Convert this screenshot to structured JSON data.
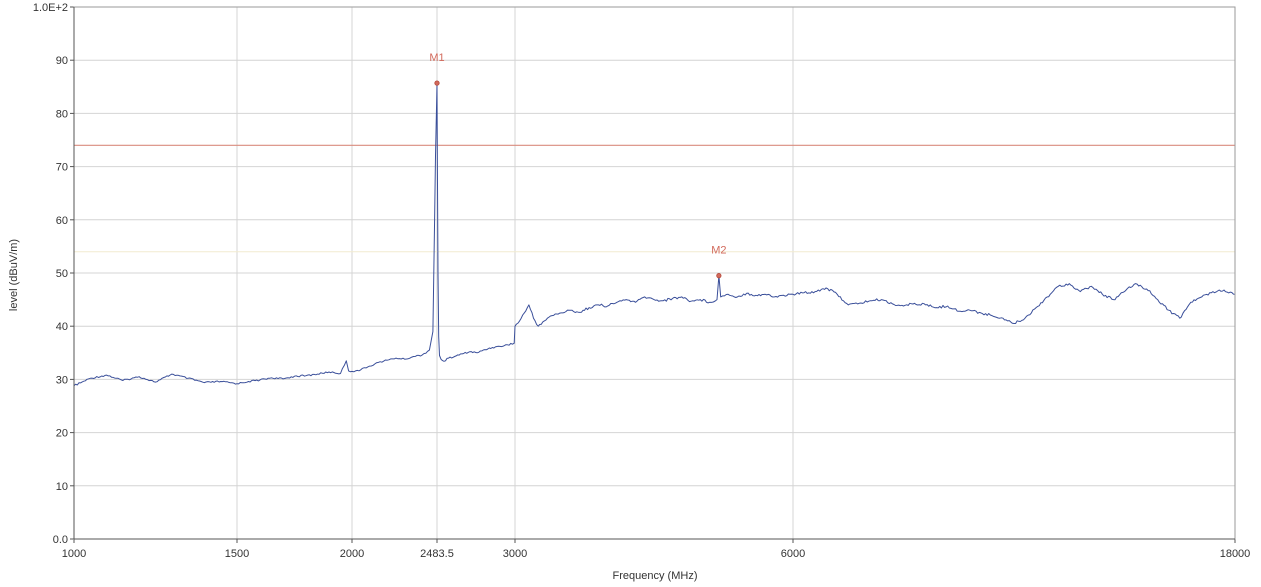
{
  "chart_data": {
    "type": "line",
    "title": "",
    "xlabel": "Frequency (MHz)",
    "ylabel": "level (dBuV/m)",
    "x_tick_labels": [
      {
        "value": 1000,
        "label": "1000"
      },
      {
        "value": 1500,
        "label": "1500"
      },
      {
        "value": 2000,
        "label": "2000"
      },
      {
        "value": 2483.5,
        "label": "2483.5"
      },
      {
        "value": 3000,
        "label": "3000"
      },
      {
        "value": 6000,
        "label": "6000"
      },
      {
        "value": 18000,
        "label": "18000"
      }
    ],
    "y_tick_labels": [
      {
        "value": 0,
        "label": "0.0"
      },
      {
        "value": 10,
        "label": "10"
      },
      {
        "value": 20,
        "label": "20"
      },
      {
        "value": 30,
        "label": "30"
      },
      {
        "value": 40,
        "label": "40"
      },
      {
        "value": 50,
        "label": "50"
      },
      {
        "value": 60,
        "label": "60"
      },
      {
        "value": 70,
        "label": "70"
      },
      {
        "value": 80,
        "label": "80"
      },
      {
        "value": 90,
        "label": "90"
      },
      {
        "value": 100,
        "label": "1.0E+2"
      }
    ],
    "ylim": [
      0,
      100
    ],
    "grid": true,
    "limit_line": {
      "y": 74,
      "color": "#d98c7f"
    },
    "faint_line": {
      "y": 54,
      "color": "#f2ecd0"
    },
    "markers": [
      {
        "label": "M1",
        "x": 2483.5,
        "y": 85.7
      },
      {
        "label": "M2",
        "x": 5200,
        "y": 49.5
      }
    ],
    "series": [
      {
        "color": "#3a4f9a",
        "x": [
          1000,
          1050,
          1100,
          1150,
          1200,
          1250,
          1300,
          1350,
          1400,
          1450,
          1500,
          1550,
          1600,
          1650,
          1700,
          1750,
          1800,
          1850,
          1900,
          1950,
          1975,
          1985,
          2000,
          2050,
          2100,
          2150,
          2200,
          2250,
          2300,
          2350,
          2400,
          2440,
          2460,
          2470,
          2475,
          2480,
          2483.5,
          2486,
          2490,
          2495,
          2500,
          2510,
          2530,
          2560,
          2600,
          2650,
          2700,
          2750,
          2800,
          2850,
          2900,
          2950,
          2995,
          3000,
          3050,
          3100,
          3150,
          3200,
          3250,
          3300,
          3350,
          3400,
          3500,
          3600,
          3700,
          3800,
          3900,
          4000,
          4100,
          4200,
          4300,
          4400,
          4500,
          4600,
          4700,
          4800,
          4900,
          5000,
          5100,
          5180,
          5200,
          5220,
          5300,
          5400,
          5500,
          5600,
          5700,
          5800,
          5900,
          6000,
          6300,
          6600,
          6900,
          7200,
          7500,
          7800,
          8100,
          8400,
          8700,
          9000,
          9300,
          9600,
          9900,
          10200,
          10500,
          10800,
          11100,
          11400,
          11700,
          12000,
          12300,
          12600,
          12900,
          13200,
          13500,
          13800,
          14100,
          14400,
          14700,
          15000,
          15300,
          15600,
          15900,
          16200,
          16500,
          16800,
          17100,
          17400,
          17700,
          18000
        ],
        "y": [
          28.8,
          30.2,
          30.8,
          29.8,
          30.5,
          29.5,
          31.0,
          30.2,
          29.4,
          29.6,
          29.2,
          29.6,
          29.9,
          30.3,
          30.1,
          30.6,
          30.7,
          31.0,
          31.4,
          31.1,
          33.5,
          31.6,
          31.5,
          31.8,
          32.5,
          33.2,
          33.6,
          34.0,
          33.8,
          34.3,
          34.6,
          35.5,
          39.0,
          60.0,
          72.0,
          80.0,
          85.7,
          70.0,
          50.0,
          38.0,
          34.5,
          33.8,
          33.4,
          34.0,
          34.3,
          34.8,
          35.2,
          35.0,
          35.6,
          36.0,
          36.2,
          36.5,
          36.8,
          40.0,
          41.0,
          42.5,
          44.0,
          41.5,
          40.0,
          40.8,
          41.5,
          42.0,
          42.5,
          43.0,
          42.6,
          43.5,
          44.0,
          43.8,
          44.5,
          45.0,
          44.5,
          45.5,
          45.0,
          44.8,
          45.2,
          45.5,
          44.7,
          45.0,
          44.5,
          45.0,
          49.5,
          45.5,
          46.0,
          45.5,
          46.2,
          45.8,
          46.0,
          45.5,
          45.8,
          46.0,
          46.3,
          46.5,
          47.2,
          46.0,
          44.0,
          44.3,
          44.8,
          45.0,
          44.2,
          43.8,
          44.3,
          44.0,
          43.5,
          43.8,
          42.8,
          43.0,
          42.5,
          42.0,
          41.5,
          40.5,
          41.5,
          43.5,
          45.5,
          47.5,
          48.0,
          46.5,
          47.5,
          46.0,
          45.0,
          46.5,
          48.0,
          47.0,
          45.0,
          43.0,
          41.5,
          44.5,
          45.5,
          46.5,
          46.8,
          46.0
        ]
      }
    ]
  }
}
